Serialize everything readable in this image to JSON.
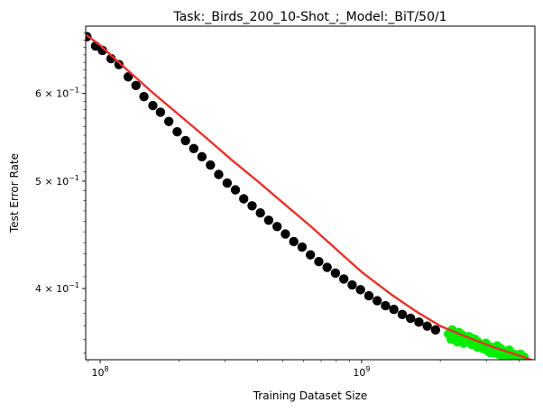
{
  "chart_data": {
    "type": "scatter",
    "title": "Task:_Birds_200_10-Shot_;_Model:_BiT/50/1",
    "xlabel": "Training Dataset Size",
    "ylabel": "Test Error Rate",
    "xscale": "log",
    "yscale": "log",
    "xlim": [
      88000000,
      4600000000
    ],
    "ylim": [
      0.345,
      0.69
    ],
    "grid": false,
    "x_ticks": [
      {
        "value": 100000000,
        "mantissa": "10",
        "exponent": "8"
      },
      {
        "value": 1000000000,
        "mantissa": "10",
        "exponent": "9"
      }
    ],
    "y_ticks": [
      {
        "value": 0.4,
        "mantissa": "4 × 10",
        "exponent": "−1"
      },
      {
        "value": 0.5,
        "mantissa": "5 × 10",
        "exponent": "−1"
      },
      {
        "value": 0.6,
        "mantissa": "6 × 10",
        "exponent": "−1"
      }
    ],
    "colors": {
      "observed": "#000000",
      "extrapolated": "#00ee00",
      "fit": "#e8312a"
    },
    "series": [
      {
        "kind": "points",
        "color_key": "observed",
        "x": [
          89000000,
          96000000,
          102000000,
          110000000,
          118000000,
          128000000,
          137000000,
          147000000,
          159000000,
          170000000,
          183000000,
          197000000,
          212000000,
          228000000,
          245000000,
          264000000,
          284000000,
          306000000,
          329000000,
          354000000,
          381000000,
          410000000,
          441000000,
          475000000,
          511000000,
          550000000,
          592000000,
          637000000,
          686000000,
          738000000,
          794000000,
          855000000,
          920000000,
          990000000,
          1066000000,
          1147000000,
          1234000000,
          1328000000,
          1430000000,
          1539000000,
          1656000000,
          1782000000,
          1918000000
        ],
        "y": [
          0.675,
          0.662,
          0.656,
          0.645,
          0.637,
          0.621,
          0.61,
          0.596,
          0.585,
          0.577,
          0.566,
          0.554,
          0.544,
          0.535,
          0.526,
          0.517,
          0.507,
          0.498,
          0.491,
          0.482,
          0.475,
          0.468,
          0.461,
          0.455,
          0.448,
          0.441,
          0.436,
          0.429,
          0.423,
          0.418,
          0.413,
          0.408,
          0.403,
          0.399,
          0.394,
          0.39,
          0.386,
          0.383,
          0.379,
          0.376,
          0.373,
          0.37,
          0.367
        ]
      },
      {
        "kind": "points",
        "color_key": "extrapolated",
        "x": [
          2150000000,
          2220000000,
          2290000000,
          2360000000,
          2430000000,
          2500000000,
          2570000000,
          2640000000,
          2710000000,
          2780000000,
          2850000000,
          2920000000,
          2990000000,
          3060000000,
          3130000000,
          3200000000,
          3270000000,
          3340000000,
          3410000000,
          3480000000,
          3550000000,
          3620000000,
          3690000000,
          3760000000,
          3830000000,
          3900000000,
          3970000000,
          4040000000,
          4110000000,
          4180000000,
          2200000000,
          2320000000,
          2460000000,
          2620000000,
          2780000000,
          2950000000,
          3120000000,
          3300000000,
          3480000000,
          3670000000,
          3860000000,
          4050000000
        ],
        "y": [
          0.364,
          0.367,
          0.361,
          0.365,
          0.363,
          0.359,
          0.362,
          0.356,
          0.36,
          0.358,
          0.355,
          0.353,
          0.357,
          0.351,
          0.354,
          0.35,
          0.352,
          0.349,
          0.353,
          0.348,
          0.351,
          0.347,
          0.35,
          0.346,
          0.349,
          0.345,
          0.348,
          0.346,
          0.344,
          0.347,
          0.36,
          0.358,
          0.357,
          0.361,
          0.354,
          0.356,
          0.35,
          0.355,
          0.347,
          0.352,
          0.343,
          0.349
        ]
      },
      {
        "kind": "line",
        "color_key": "fit",
        "x": [
          88000000,
          100000000,
          125000000,
          160000000,
          200000000,
          250000000,
          320000000,
          400000000,
          500000000,
          640000000,
          800000000,
          1000000000,
          1300000000,
          1600000000,
          2000000000,
          2500000000,
          3200000000,
          4000000000,
          4600000000
        ],
        "y": [
          0.678,
          0.663,
          0.632,
          0.6,
          0.574,
          0.549,
          0.522,
          0.5,
          0.478,
          0.455,
          0.434,
          0.414,
          0.395,
          0.382,
          0.37,
          0.362,
          0.354,
          0.348,
          0.344
        ]
      }
    ]
  }
}
